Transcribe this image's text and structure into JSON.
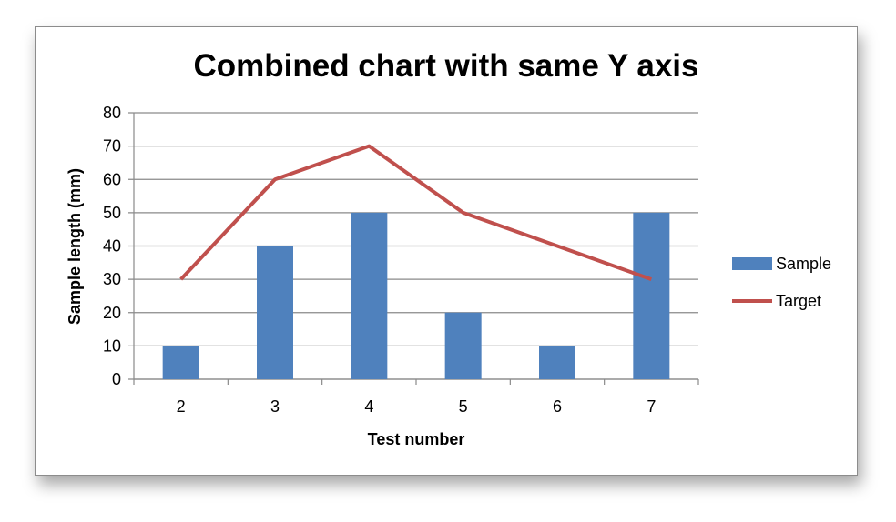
{
  "chart_data": {
    "type": "bar",
    "title": "Combined chart with same Y axis",
    "xlabel": "Test number",
    "ylabel": "Sample length (mm)",
    "categories": [
      "2",
      "3",
      "4",
      "5",
      "6",
      "7"
    ],
    "ylim": [
      0,
      80
    ],
    "yticks": [
      0,
      10,
      20,
      30,
      40,
      50,
      60,
      70,
      80
    ],
    "grid": true,
    "legend_position": "right",
    "series": [
      {
        "name": "Sample",
        "type": "bar",
        "color": "#4f81bd",
        "values": [
          10,
          40,
          50,
          20,
          10,
          50
        ]
      },
      {
        "name": "Target",
        "type": "line",
        "color": "#c0504d",
        "values": [
          30,
          60,
          70,
          50,
          40,
          30
        ]
      }
    ]
  }
}
